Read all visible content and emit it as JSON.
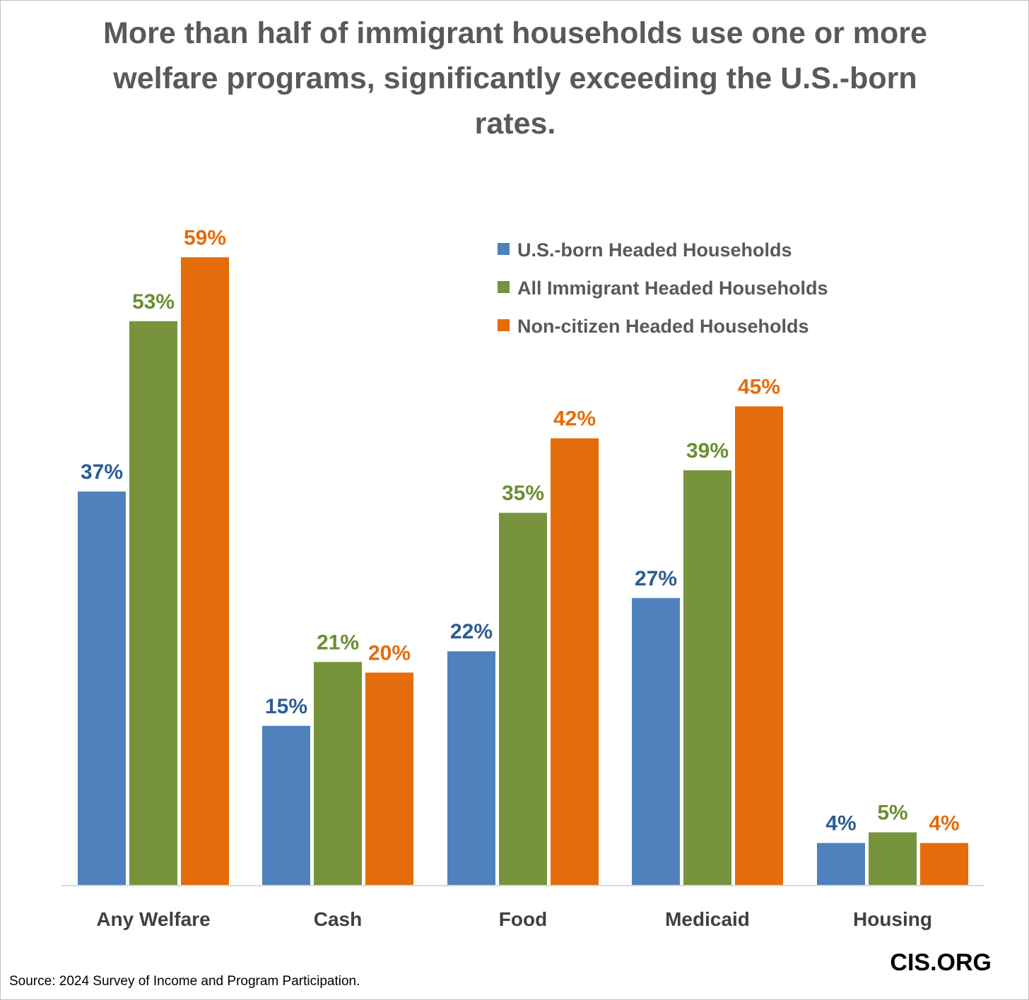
{
  "chart_data": {
    "type": "bar",
    "title": "More than half of immigrant households use one or more welfare programs, significantly exceeding the U.S.-born rates.",
    "categories": [
      "Any Welfare",
      "Cash",
      "Food",
      "Medicaid",
      "Housing"
    ],
    "series": [
      {
        "name": "U.S.-born Headed Households",
        "color": "#4f81bd",
        "label_color": "#2e5c93",
        "values": [
          37,
          15,
          22,
          27,
          4
        ],
        "labels": [
          "37%",
          "15%",
          "22%",
          "27%",
          "4%"
        ]
      },
      {
        "name": "All Immigrant Headed Households",
        "color": "#77933c",
        "label_color": "#6b8e2f",
        "values": [
          53,
          21,
          35,
          39,
          5
        ],
        "labels": [
          "53%",
          "21%",
          "35%",
          "39%",
          "5%"
        ]
      },
      {
        "name": "Non-citizen Headed Households",
        "color": "#e46c0a",
        "label_color": "#e46c0a",
        "values": [
          59,
          20,
          42,
          45,
          4
        ],
        "labels": [
          "59%",
          "20%",
          "42%",
          "45%",
          "4%"
        ]
      }
    ],
    "xlabel": "",
    "ylabel": "",
    "ylim": [
      0,
      59
    ],
    "grid": false,
    "legend_position": "top-right"
  },
  "source": "Source: 2024 Survey of Income and Program Participation.",
  "brand": "CIS.ORG"
}
